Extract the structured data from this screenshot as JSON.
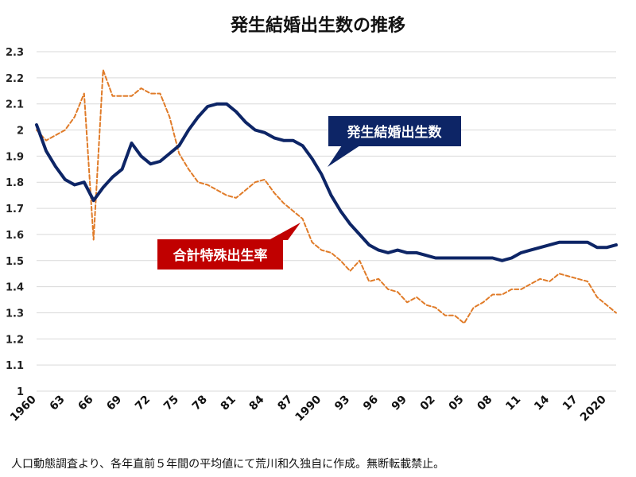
{
  "chart_data": {
    "type": "line",
    "title": "発生結婚出生数の推移",
    "xlabel": "",
    "ylabel": "",
    "ylim": [
      1,
      2.3
    ],
    "y_ticks": [
      "1",
      "1.1",
      "1.2",
      "1.3",
      "1.4",
      "1.5",
      "1.6",
      "1.7",
      "1.8",
      "1.9",
      "2",
      "2.1",
      "2.2",
      "2.3"
    ],
    "x_tick_labels": [
      {
        "year": 1960,
        "label": "1960"
      },
      {
        "year": 1963,
        "label": "63"
      },
      {
        "year": 1966,
        "label": "66"
      },
      {
        "year": 1969,
        "label": "69"
      },
      {
        "year": 1972,
        "label": "72"
      },
      {
        "year": 1975,
        "label": "75"
      },
      {
        "year": 1978,
        "label": "78"
      },
      {
        "year": 1981,
        "label": "81"
      },
      {
        "year": 1984,
        "label": "84"
      },
      {
        "year": 1987,
        "label": "87"
      },
      {
        "year": 1990,
        "label": "1990"
      },
      {
        "year": 1993,
        "label": "93"
      },
      {
        "year": 1996,
        "label": "96"
      },
      {
        "year": 1999,
        "label": "99"
      },
      {
        "year": 2002,
        "label": "02"
      },
      {
        "year": 2005,
        "label": "05"
      },
      {
        "year": 2008,
        "label": "08"
      },
      {
        "year": 2011,
        "label": "11"
      },
      {
        "year": 2014,
        "label": "14"
      },
      {
        "year": 2017,
        "label": "17"
      },
      {
        "year": 2020,
        "label": "2020"
      }
    ],
    "grid": true,
    "series": [
      {
        "name": "発生結婚出生数",
        "color": "#0d2566",
        "style": "solid",
        "x": [
          1960,
          1961,
          1962,
          1963,
          1964,
          1965,
          1966,
          1967,
          1968,
          1969,
          1970,
          1971,
          1972,
          1973,
          1974,
          1975,
          1976,
          1977,
          1978,
          1979,
          1980,
          1981,
          1982,
          1983,
          1984,
          1985,
          1986,
          1987,
          1988,
          1989,
          1990,
          1991,
          1992,
          1993,
          1994,
          1995,
          1996,
          1997,
          1998,
          1999,
          2000,
          2001,
          2002,
          2003,
          2004,
          2005,
          2006,
          2007,
          2008,
          2009,
          2010,
          2011,
          2012,
          2013,
          2014,
          2015,
          2016,
          2017,
          2018,
          2019,
          2020,
          2021
        ],
        "values": [
          2.02,
          1.92,
          1.86,
          1.81,
          1.79,
          1.8,
          1.73,
          1.78,
          1.82,
          1.85,
          1.95,
          1.9,
          1.87,
          1.88,
          1.91,
          1.94,
          2.0,
          2.05,
          2.09,
          2.1,
          2.1,
          2.07,
          2.03,
          2.0,
          1.99,
          1.97,
          1.96,
          1.96,
          1.94,
          1.89,
          1.83,
          1.75,
          1.69,
          1.64,
          1.6,
          1.56,
          1.54,
          1.53,
          1.54,
          1.53,
          1.53,
          1.52,
          1.51,
          1.51,
          1.51,
          1.51,
          1.51,
          1.51,
          1.51,
          1.5,
          1.51,
          1.53,
          1.54,
          1.55,
          1.56,
          1.57,
          1.57,
          1.57,
          1.57,
          1.55,
          1.55,
          1.56
        ]
      },
      {
        "name": "合計特殊出生率",
        "color": "#e07b28",
        "style": "dashed",
        "x": [
          1960,
          1961,
          1962,
          1963,
          1964,
          1965,
          1966,
          1967,
          1968,
          1969,
          1970,
          1971,
          1972,
          1973,
          1974,
          1975,
          1976,
          1977,
          1978,
          1979,
          1980,
          1981,
          1982,
          1983,
          1984,
          1985,
          1986,
          1987,
          1988,
          1989,
          1990,
          1991,
          1992,
          1993,
          1994,
          1995,
          1996,
          1997,
          1998,
          1999,
          2000,
          2001,
          2002,
          2003,
          2004,
          2005,
          2006,
          2007,
          2008,
          2009,
          2010,
          2011,
          2012,
          2013,
          2014,
          2015,
          2016,
          2017,
          2018,
          2019,
          2020,
          2021
        ],
        "values": [
          2.0,
          1.96,
          1.98,
          2.0,
          2.05,
          2.14,
          1.58,
          2.23,
          2.13,
          2.13,
          2.13,
          2.16,
          2.14,
          2.14,
          2.05,
          1.91,
          1.85,
          1.8,
          1.79,
          1.77,
          1.75,
          1.74,
          1.77,
          1.8,
          1.81,
          1.76,
          1.72,
          1.69,
          1.66,
          1.57,
          1.54,
          1.53,
          1.5,
          1.46,
          1.5,
          1.42,
          1.43,
          1.39,
          1.38,
          1.34,
          1.36,
          1.33,
          1.32,
          1.29,
          1.29,
          1.26,
          1.32,
          1.34,
          1.37,
          1.37,
          1.39,
          1.39,
          1.41,
          1.43,
          1.42,
          1.45,
          1.44,
          1.43,
          1.42,
          1.36,
          1.33,
          1.3
        ]
      }
    ]
  },
  "note": "人口動態調査より、各年直前５年間の平均値にて荒川和久独自に作成。無断転載禁止。"
}
